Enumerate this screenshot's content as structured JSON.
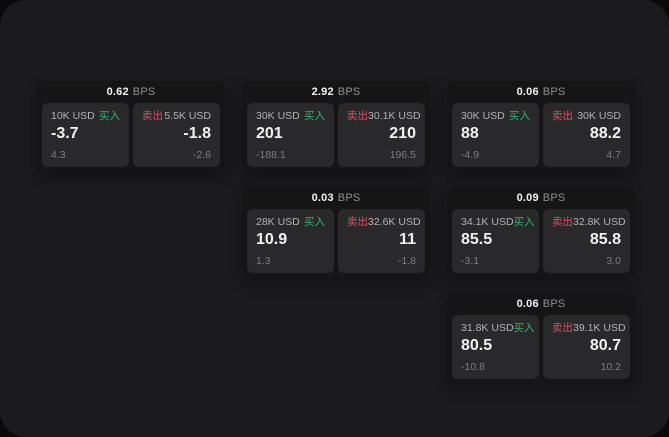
{
  "colors": {
    "outer_bg": "#0a0a0a",
    "container_bg": "#1b1b1d",
    "card_bg": "#151516",
    "panel_bg": "#29292b",
    "text_primary": "#f2f2f2",
    "text_secondary": "#b3b3b3",
    "text_muted": "#7d7d7d",
    "text_unit": "#8e8e8e",
    "buy_green": "#36b26b",
    "sell_red": "#d94f63"
  },
  "labels": {
    "bps_unit": "BPS",
    "buy": "买入",
    "sell": "卖出"
  },
  "cards": [
    {
      "bps": "0.62",
      "grid": {
        "row": 1,
        "col": 1
      },
      "buy": {
        "size": "10K USD",
        "value": "-3.7",
        "delta": "4.3"
      },
      "sell": {
        "size": "5.5K USD",
        "value": "-1.8",
        "delta": "-2.6"
      }
    },
    {
      "bps": "2.92",
      "grid": {
        "row": 1,
        "col": 2
      },
      "buy": {
        "size": "30K USD",
        "value": "201",
        "delta": "-188.1"
      },
      "sell": {
        "size": "30.1K USD",
        "value": "210",
        "delta": "196.5"
      }
    },
    {
      "bps": "0.06",
      "grid": {
        "row": 1,
        "col": 3
      },
      "buy": {
        "size": "30K USD",
        "value": "88",
        "delta": "-4.9"
      },
      "sell": {
        "size": "30K USD",
        "value": "88.2",
        "delta": "4.7"
      }
    },
    {
      "bps": "0.03",
      "grid": {
        "row": 2,
        "col": 2
      },
      "buy": {
        "size": "28K USD",
        "value": "10.9",
        "delta": "1.3"
      },
      "sell": {
        "size": "32.6K USD",
        "value": "11",
        "delta": "-1.8"
      }
    },
    {
      "bps": "0.09",
      "grid": {
        "row": 2,
        "col": 3
      },
      "buy": {
        "size": "34.1K USD",
        "value": "85.5",
        "delta": "-3.1"
      },
      "sell": {
        "size": "32.8K USD",
        "value": "85.8",
        "delta": "3.0"
      }
    },
    {
      "bps": "0.06",
      "grid": {
        "row": 3,
        "col": 3
      },
      "buy": {
        "size": "31.8K USD",
        "value": "80.5",
        "delta": "-10.8"
      },
      "sell": {
        "size": "39.1K USD",
        "value": "80.7",
        "delta": "10.2"
      }
    }
  ]
}
